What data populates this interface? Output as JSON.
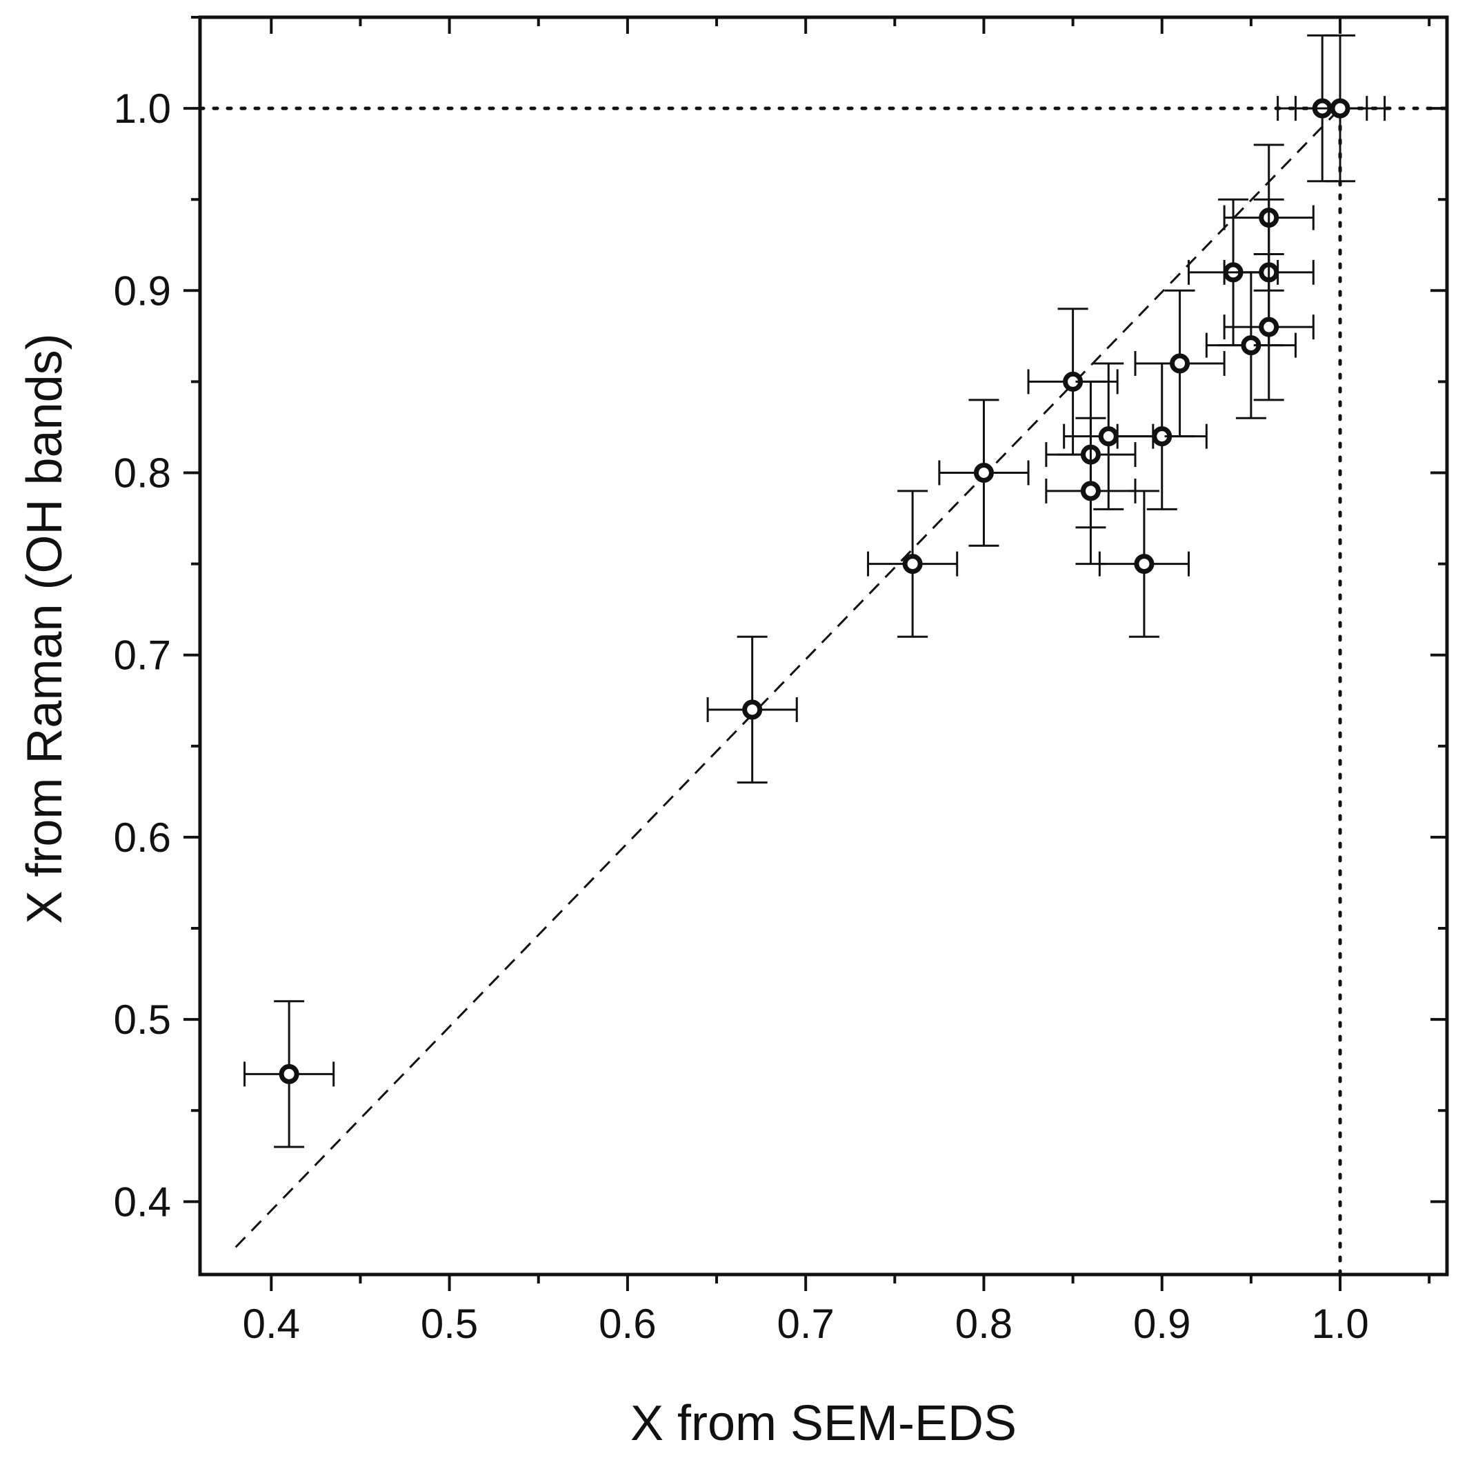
{
  "chart_data": {
    "type": "scatter",
    "title": "",
    "xlabel": "X from SEM-EDS",
    "ylabel": "X from Raman (OH bands)",
    "xlim": [
      0.36,
      1.06
    ],
    "ylim": [
      0.36,
      1.05
    ],
    "xticks": [
      0.4,
      0.5,
      0.6,
      0.7,
      0.8,
      0.9,
      1.0
    ],
    "xtick_labels": [
      "0.4",
      "0.5",
      "0.6",
      "0.7",
      "0.8",
      "0.9",
      "1.0"
    ],
    "yticks": [
      0.4,
      0.5,
      0.6,
      0.7,
      0.8,
      0.9,
      1.0
    ],
    "ytick_labels": [
      "0.4",
      "0.5",
      "0.6",
      "0.7",
      "0.8",
      "0.9",
      "1.0"
    ],
    "minor_step": 0.05,
    "grid": false,
    "marker": "open-circle",
    "colors": {
      "axis": "#111111",
      "marker": "#111111",
      "background": "#ffffff"
    },
    "points": [
      {
        "x": 0.41,
        "y": 0.47,
        "xerr": 0.025,
        "yerr": 0.04
      },
      {
        "x": 0.67,
        "y": 0.67,
        "xerr": 0.025,
        "yerr": 0.04
      },
      {
        "x": 0.76,
        "y": 0.75,
        "xerr": 0.025,
        "yerr": 0.04
      },
      {
        "x": 0.8,
        "y": 0.8,
        "xerr": 0.025,
        "yerr": 0.04
      },
      {
        "x": 0.85,
        "y": 0.85,
        "xerr": 0.025,
        "yerr": 0.04
      },
      {
        "x": 0.86,
        "y": 0.81,
        "xerr": 0.025,
        "yerr": 0.04
      },
      {
        "x": 0.86,
        "y": 0.79,
        "xerr": 0.025,
        "yerr": 0.04
      },
      {
        "x": 0.87,
        "y": 0.82,
        "xerr": 0.025,
        "yerr": 0.04
      },
      {
        "x": 0.89,
        "y": 0.75,
        "xerr": 0.025,
        "yerr": 0.04
      },
      {
        "x": 0.9,
        "y": 0.82,
        "xerr": 0.025,
        "yerr": 0.04
      },
      {
        "x": 0.91,
        "y": 0.86,
        "xerr": 0.025,
        "yerr": 0.04
      },
      {
        "x": 0.94,
        "y": 0.91,
        "xerr": 0.025,
        "yerr": 0.04
      },
      {
        "x": 0.95,
        "y": 0.87,
        "xerr": 0.025,
        "yerr": 0.04
      },
      {
        "x": 0.96,
        "y": 0.94,
        "xerr": 0.025,
        "yerr": 0.04
      },
      {
        "x": 0.96,
        "y": 0.91,
        "xerr": 0.025,
        "yerr": 0.04
      },
      {
        "x": 0.96,
        "y": 0.88,
        "xerr": 0.025,
        "yerr": 0.04
      },
      {
        "x": 0.99,
        "y": 1.0,
        "xerr": 0.025,
        "yerr": 0.04
      },
      {
        "x": 1.0,
        "y": 1.0,
        "xerr": 0.025,
        "yerr": 0.04
      }
    ],
    "reference_lines": [
      {
        "name": "identity-line",
        "style": "dashed",
        "from": [
          0.38,
          0.375
        ],
        "to": [
          1.0,
          1.0
        ]
      },
      {
        "name": "horizontal-reference-line",
        "style": "dotted",
        "from": [
          0.36,
          1.0
        ],
        "to": [
          1.06,
          1.0
        ]
      },
      {
        "name": "vertical-reference-line",
        "style": "dotted",
        "from": [
          1.0,
          0.36
        ],
        "to": [
          1.0,
          1.0
        ]
      }
    ]
  }
}
